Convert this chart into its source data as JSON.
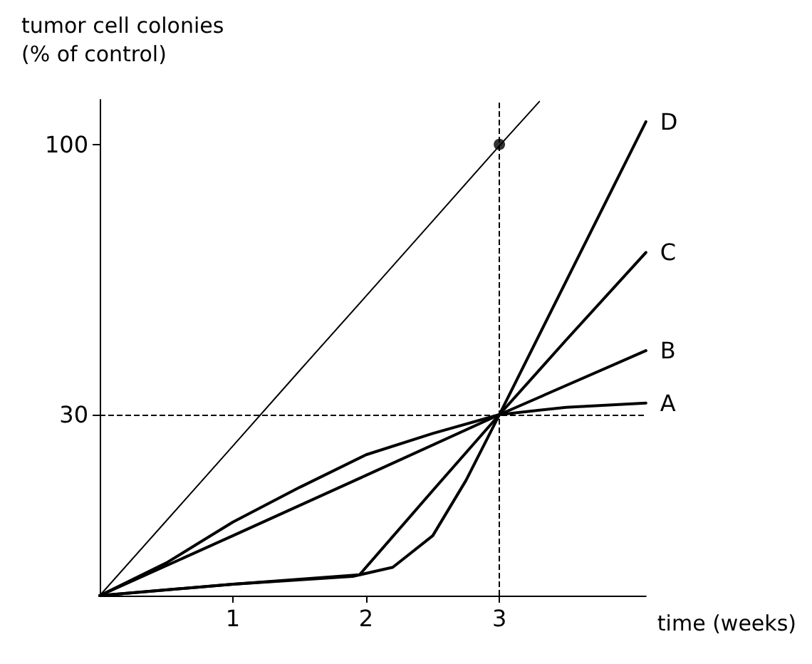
{
  "chart_data": {
    "type": "line",
    "ylabel": "tumor cell colonies\n(% of control)",
    "xlabel": "time (weeks)",
    "log": "y",
    "xlim": [
      0,
      4.1
    ],
    "xticks": [
      1,
      2,
      3
    ],
    "ylim": [
      13.4,
      122
    ],
    "yticks": [
      30,
      100
    ],
    "grid": false,
    "legend": false,
    "marker": "none",
    "series": [
      {
        "color": "#000000",
        "x": [
          0,
          0.5,
          1,
          1.5,
          2,
          2.5,
          3,
          3.3
        ],
        "values": [
          13.4,
          18.7,
          26.1,
          36.5,
          50.9,
          71.1,
          99.4,
          121
        ]
      },
      {
        "name": "A",
        "color": "#000000",
        "x": [
          0,
          0.5,
          1,
          1.5,
          2,
          2.5,
          3,
          3.5,
          4.1
        ],
        "values": [
          13.4,
          15.5,
          18.6,
          21.7,
          25.1,
          27.6,
          30,
          31,
          31.6
        ]
      },
      {
        "name": "B",
        "color": "#000000",
        "x": [
          0,
          1,
          2,
          3,
          4.1
        ],
        "values": [
          13.4,
          17.5,
          22.9,
          30,
          39.9
        ]
      },
      {
        "name": "C",
        "color": "#000000",
        "x": [
          0,
          1,
          1.95,
          2.5,
          3,
          3.5,
          4.1
        ],
        "values": [
          13.4,
          14.1,
          14.7,
          21.4,
          30,
          41.8,
          61.8
        ]
      },
      {
        "name": "D",
        "color": "#000000",
        "x": [
          0,
          1,
          1.9,
          2.2,
          2.5,
          2.75,
          3,
          3.5,
          4.1
        ],
        "values": [
          13.4,
          14.1,
          14.6,
          15.2,
          17.5,
          22.4,
          30,
          54.3,
          110.6
        ]
      },
      {
        "type": "scatter",
        "marker": "circle",
        "color": "#000000",
        "x": [
          3
        ],
        "values": [
          100
        ]
      }
    ],
    "ref_lines": [
      {
        "axis": "x",
        "value": 3,
        "line_style": "dashed",
        "color": "#000000"
      },
      {
        "axis": "y",
        "value": 30,
        "line_style": "dashed",
        "color": "#000000"
      }
    ]
  }
}
